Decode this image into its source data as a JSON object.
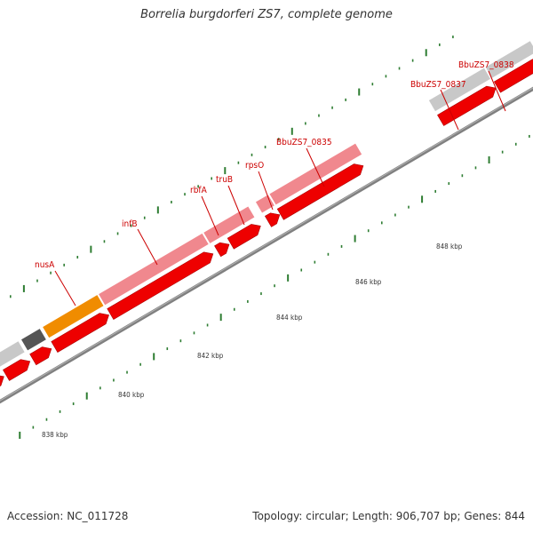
{
  "title": "Borrelia burgdorferi ZS7, complete genome",
  "footer": {
    "accession": "Accession: NC_011728",
    "summary": "Topology: circular; Length: 906,707 bp; Genes: 844"
  },
  "scale": {
    "unit": "kbp",
    "labels": [
      "838 kbp",
      "840 kbp",
      "842 kbp",
      "844 kbp",
      "846 kbp",
      "848 kbp"
    ]
  },
  "genes": {
    "labels": [
      "nusA",
      "infB",
      "rbfA",
      "truB",
      "rpsO",
      "BbuZS7_0835",
      "BbuZS7_0837",
      "BbuZS7_0838"
    ]
  },
  "colors": {
    "cds": "#ee0000",
    "gene_light": "#f0888e",
    "gene_grey": "#c8c8c8",
    "gene_dark": "#555555",
    "gene_orange": "#f08c00",
    "gene_magenta": "#ff1aa0",
    "ticks": "#2e7d32",
    "label": "#cc0000",
    "backbone": "#808080"
  }
}
